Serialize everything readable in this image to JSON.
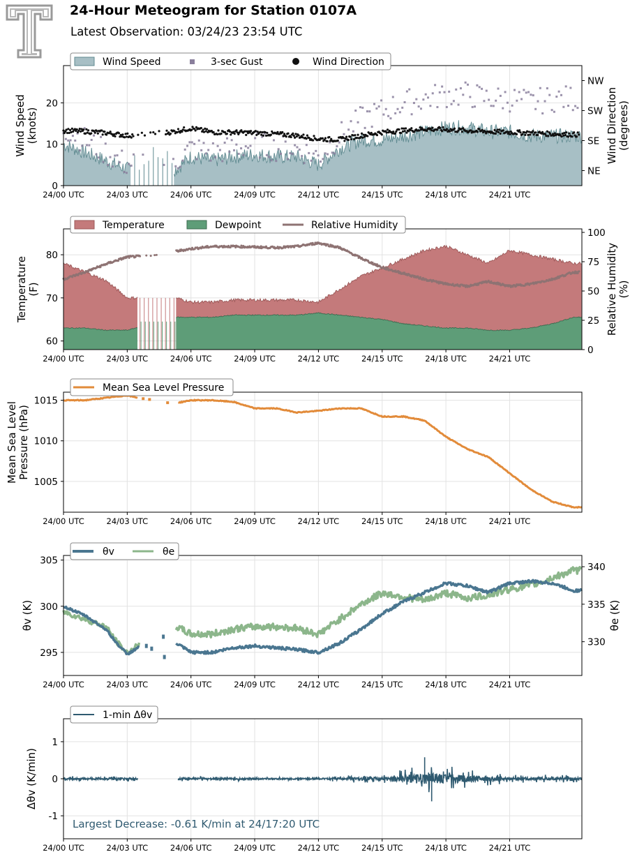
{
  "header": {
    "title": "24-Hour Meteogram for Station 0107A",
    "subtitle": "Latest Observation: 03/24/23 23:54 UTC",
    "logo_text": "T"
  },
  "time_ticks": [
    "24/00 UTC",
    "24/03 UTC",
    "24/06 UTC",
    "24/09 UTC",
    "24/12 UTC",
    "24/15 UTC",
    "24/18 UTC",
    "24/21 UTC"
  ],
  "colors": {
    "wind_fill": "#a7bfc5",
    "wind_line": "#5f8a90",
    "gust": "#8a7f9c",
    "direction": "#111111",
    "temperature": "#c47a7b",
    "temperature_edge": "#9b5858",
    "dewpoint": "#5e9d78",
    "dewpoint_edge": "#3e6b50",
    "humidity": "#8e7373",
    "pressure": "#e28b3a",
    "theta_v": "#4a7690",
    "theta_e": "#8cb68b",
    "dtheta": "#2f5a70",
    "annotation": "#2f5a70",
    "grid": "#e2e2e2"
  },
  "chart_data": [
    {
      "type": "area",
      "panel": "wind",
      "xlabel": "",
      "ylabel": "Wind Speed\n(knots)",
      "ylabel_right": "Wind Direction\n(degrees)",
      "ylim": [
        0,
        29
      ],
      "yticks": [
        0,
        10,
        20
      ],
      "right_ticks": [
        "NE",
        "SE",
        "SW",
        "NW"
      ],
      "right_ticks_deg": [
        45,
        135,
        225,
        315
      ],
      "right_ylim": [
        0,
        360
      ],
      "legend": [
        "Wind Speed",
        "3-sec Gust",
        "Wind Direction"
      ],
      "gap_hours": [
        3.2,
        5.2
      ],
      "series": [
        {
          "name": "Wind Speed",
          "x": [
            0,
            1,
            2,
            3,
            3.5,
            5.3,
            6,
            7,
            8,
            9,
            10,
            11,
            12,
            13,
            14,
            15,
            16,
            17,
            18,
            19,
            20,
            21,
            22,
            23,
            24
          ],
          "values": [
            10,
            8,
            6,
            4,
            4,
            4,
            7,
            6,
            7,
            7.5,
            7,
            7,
            5,
            9,
            11,
            11,
            12,
            13,
            14,
            14,
            13,
            13,
            12,
            12,
            12
          ]
        },
        {
          "name": "3-sec Gust",
          "x": [
            0,
            1,
            2,
            3,
            3.5,
            5.3,
            6,
            7,
            8,
            9,
            10,
            11,
            12,
            13,
            14,
            15,
            16,
            17,
            18,
            19,
            20,
            21,
            22,
            23,
            24
          ],
          "values": [
            14,
            11,
            8,
            5,
            6,
            6,
            9,
            8,
            9,
            10,
            9,
            9,
            7,
            12,
            16,
            18,
            20,
            21,
            22,
            22,
            21,
            21,
            20,
            21,
            21
          ]
        },
        {
          "name": "Wind Direction",
          "x": [
            0,
            1,
            2,
            3,
            4,
            5,
            6,
            7,
            8,
            9,
            10,
            11,
            12,
            13,
            14,
            15,
            16,
            17,
            18,
            19,
            20,
            21,
            22,
            23,
            24
          ],
          "values": [
            165,
            163,
            158,
            150,
            155,
            160,
            172,
            160,
            160,
            158,
            155,
            150,
            140,
            138,
            150,
            160,
            165,
            170,
            168,
            165,
            162,
            160,
            158,
            155,
            153
          ]
        }
      ]
    },
    {
      "type": "area",
      "panel": "temperature",
      "xlabel": "",
      "ylabel": "Temperature\n(F)",
      "ylabel_right": "Relative Humidity\n(%)",
      "ylim": [
        58,
        86
      ],
      "yticks": [
        60,
        70,
        80
      ],
      "right_ylim": [
        0,
        103
      ],
      "right_yticks": [
        0,
        25,
        50,
        75,
        100
      ],
      "legend": [
        "Temperature",
        "Dewpoint",
        "Relative Humidity"
      ],
      "gap_hours": [
        3.5,
        5.3
      ],
      "series": [
        {
          "name": "Temperature",
          "x": [
            0,
            1,
            2,
            3,
            5.3,
            6,
            7,
            8,
            9,
            10,
            11,
            12,
            13,
            14,
            15,
            16,
            17,
            18,
            19,
            20,
            21,
            22,
            23,
            24
          ],
          "values": [
            78,
            76,
            74,
            70,
            70,
            69,
            69,
            69.5,
            69.5,
            69.5,
            69.5,
            69,
            72,
            75,
            77,
            79,
            81,
            82,
            80,
            78,
            81,
            80,
            79,
            78
          ]
        },
        {
          "name": "Dewpoint",
          "x": [
            0,
            1,
            2,
            3,
            5.3,
            6,
            7,
            8,
            9,
            10,
            11,
            12,
            13,
            14,
            15,
            16,
            17,
            18,
            19,
            20,
            21,
            22,
            23,
            24
          ],
          "values": [
            63,
            63,
            62.5,
            62.5,
            65.5,
            65.5,
            65.5,
            66,
            66,
            66,
            66,
            66.5,
            66,
            65.5,
            65,
            64,
            63.5,
            63,
            63,
            62.5,
            62.5,
            63,
            64,
            65.5
          ]
        },
        {
          "name": "Relative Humidity",
          "x": [
            0,
            1,
            2,
            3,
            4,
            5,
            6,
            7,
            8,
            9,
            10,
            11,
            12,
            13,
            14,
            15,
            16,
            17,
            18,
            19,
            20,
            21,
            22,
            23,
            24
          ],
          "values": [
            60,
            66,
            73,
            79,
            80,
            83,
            86,
            88,
            88,
            87.5,
            87,
            88,
            91,
            87,
            78,
            70,
            65,
            60,
            56,
            54,
            58,
            54,
            56,
            60,
            66
          ]
        }
      ]
    },
    {
      "type": "line",
      "panel": "pressure",
      "xlabel": "",
      "ylabel": "Mean Sea Level\nPressure (hPa)",
      "ylim": [
        1001.2,
        1016
      ],
      "yticks": [
        1005,
        1010,
        1015
      ],
      "legend": [
        "Mean Sea Level Pressure"
      ],
      "gap_hours": [
        3.6,
        5.3
      ],
      "series": [
        {
          "name": "Mean Sea Level Pressure",
          "x": [
            0,
            1,
            2,
            3,
            3.5,
            5.4,
            6,
            7,
            8,
            9,
            10,
            11,
            12,
            13,
            14,
            15,
            16,
            17,
            18,
            19,
            20,
            21,
            22,
            23,
            24
          ],
          "values": [
            1015,
            1015,
            1015.3,
            1015.6,
            1015.3,
            1014.7,
            1015,
            1015,
            1014.8,
            1014,
            1014,
            1013.5,
            1013.7,
            1014,
            1014,
            1013,
            1013,
            1012.5,
            1010.5,
            1009,
            1008,
            1006,
            1004,
            1002.5,
            1001.8
          ]
        }
      ]
    },
    {
      "type": "line",
      "panel": "theta",
      "xlabel": "",
      "ylabel": "θv (K)",
      "ylabel_right": "θe (K)",
      "ylim": [
        292.5,
        305.5
      ],
      "yticks": [
        295,
        300,
        305
      ],
      "right_ylim": [
        325.5,
        341.5
      ],
      "right_yticks": [
        330,
        335,
        340
      ],
      "legend": [
        "θv",
        "θe"
      ],
      "gap_hours": [
        3.6,
        5.3
      ],
      "series": [
        {
          "name": "θv",
          "x": [
            0,
            1,
            2,
            2.5,
            3,
            3.5,
            5.3,
            6,
            7,
            8,
            9,
            10,
            11,
            12,
            13,
            14,
            15,
            16,
            17,
            18,
            19,
            20,
            21,
            22,
            23,
            24
          ],
          "values": [
            300,
            299,
            297.5,
            296,
            294.8,
            295.5,
            296,
            295,
            295,
            295.5,
            295.7,
            295.5,
            295.3,
            295,
            296,
            297.5,
            299.2,
            300.5,
            301.5,
            302.5,
            302.2,
            301.5,
            302.5,
            302.7,
            302.5,
            301.7
          ]
        },
        {
          "name": "θe",
          "x": [
            0,
            1,
            2,
            2.5,
            3,
            3.5,
            5.3,
            6,
            7,
            8,
            9,
            10,
            11,
            12,
            13,
            14,
            15,
            16,
            17,
            18,
            19,
            20,
            21,
            22,
            23,
            24
          ],
          "values": [
            334,
            333,
            332,
            330,
            328.5,
            329.5,
            332,
            331,
            331,
            331.7,
            332,
            332,
            331.8,
            331,
            333,
            335,
            336.5,
            336,
            335.5,
            336.5,
            335.8,
            336.2,
            337,
            337.5,
            338.5,
            339.5
          ]
        }
      ]
    },
    {
      "type": "line",
      "panel": "delta",
      "xlabel": "",
      "ylabel": "Δθv (K/min)",
      "ylim": [
        -1.62,
        1.62
      ],
      "yticks": [
        -1,
        0,
        1
      ],
      "legend": [
        "1-min Δθv"
      ],
      "gap_hours": [
        3.5,
        5.4
      ],
      "annotation": "Largest Decrease: -0.61 K/min at 24/17:20 UTC",
      "noise_amplitude_hours": [
        [
          0,
          0.08
        ],
        [
          12,
          0.05
        ],
        [
          15,
          0.15
        ],
        [
          17.3,
          0.45
        ],
        [
          19,
          0.25
        ],
        [
          21,
          0.12
        ],
        [
          24,
          0.1
        ]
      ],
      "series": [
        {
          "name": "1-min Δθv",
          "extremes": {
            "max": 0.58,
            "min": -0.61,
            "min_time": "24/17:20 UTC"
          }
        }
      ]
    }
  ]
}
